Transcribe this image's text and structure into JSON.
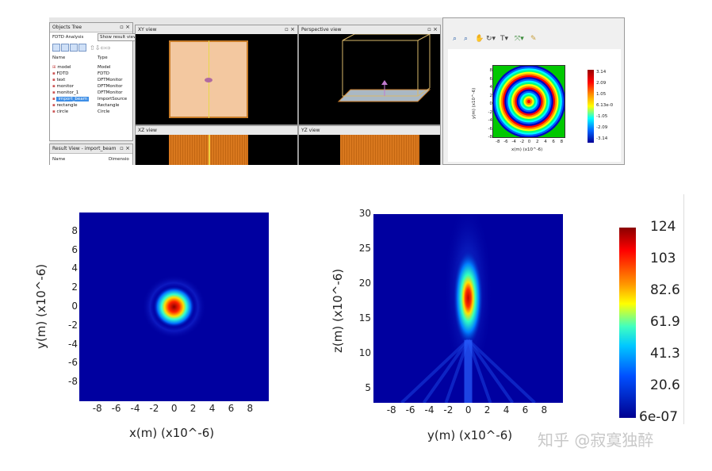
{
  "app": {
    "objects_tree": {
      "title": "Objects Tree",
      "analysis_label": "FDTD Analysis",
      "show_result_button": "Show result view",
      "columns": [
        "Name",
        "Type"
      ],
      "rows": [
        {
          "name": "model",
          "type": "Model"
        },
        {
          "name": "FDTD",
          "type": "FDTD"
        },
        {
          "name": "text",
          "type": "DFTMonitor"
        },
        {
          "name": "monitor",
          "type": "DFTMonitor"
        },
        {
          "name": "monitor_1",
          "type": "DFTMonitor"
        },
        {
          "name": "import_beam",
          "type": "ImportSource"
        },
        {
          "name": "rectangle",
          "type": "Rectangle"
        },
        {
          "name": "circle",
          "type": "Circle"
        }
      ]
    },
    "result_view": {
      "title": "Result View - import_beam",
      "col_name": "Name",
      "col_dims": "Dimensio"
    },
    "views": {
      "xy": "XY view",
      "perspective": "Perspective view",
      "xz": "XZ view",
      "yz": "YZ view"
    },
    "visualizer": {
      "ylabel": "y(m) (x10^-6)",
      "xlabel": "x(m) (x10^-6)",
      "colorbar_ticks": [
        "3.14",
        "2.09",
        "1.05",
        "6.13e-0",
        "-1.05",
        "-2.09",
        "-3.14"
      ],
      "x_ticks": [
        "-8",
        "-6",
        "-4",
        "-2",
        "0",
        "2",
        "4",
        "6",
        "8"
      ],
      "y_ticks": [
        "8",
        "6",
        "4",
        "2",
        "0",
        "-2",
        "-4",
        "-6",
        "-8"
      ]
    }
  },
  "chart_data": [
    {
      "type": "heatmap",
      "title": "",
      "xlabel": "x(m) (x10^-6)",
      "ylabel": "y(m) (x10^-6)",
      "xlim": [
        -10,
        10
      ],
      "ylim": [
        -10,
        10
      ],
      "x_ticks": [
        -8,
        -6,
        -4,
        -2,
        0,
        2,
        4,
        6,
        8
      ],
      "y_ticks": [
        8,
        6,
        4,
        2,
        0,
        -2,
        -4,
        -6,
        -8
      ],
      "x_tick_labels": [
        "-8",
        "-6",
        "-4",
        "-2",
        "0",
        "2",
        "4",
        "6",
        "8"
      ],
      "y_tick_labels": [
        "8",
        "6",
        "4",
        "2",
        "0",
        "-2",
        "-4",
        "-6",
        "-8"
      ],
      "description_data": {
        "spot_center": [
          0,
          0
        ],
        "spot_radius": 1.0,
        "ring_radius": 2.5
      }
    },
    {
      "type": "heatmap",
      "title": "",
      "xlabel": "y(m) (x10^-6)",
      "ylabel": "z(m) (x10^-6)",
      "xlim": [
        -10,
        10
      ],
      "ylim": [
        3,
        30
      ],
      "x_ticks": [
        -8,
        -6,
        -4,
        -2,
        0,
        2,
        4,
        6,
        8
      ],
      "y_ticks": [
        30,
        25,
        20,
        15,
        10,
        5
      ],
      "x_tick_labels": [
        "-8",
        "-6",
        "-4",
        "-2",
        "0",
        "2",
        "4",
        "6",
        "8"
      ],
      "y_tick_labels": [
        "30",
        "25",
        "20",
        "15",
        "10",
        "5"
      ],
      "description_data": {
        "focus_z": 18,
        "focus_halfwidth": 1.0
      },
      "colorbar": {
        "min": 6e-07,
        "max": 124,
        "tick_labels": [
          "124",
          "103",
          "82.6",
          "61.9",
          "41.3",
          "20.6",
          "6e-07"
        ]
      }
    }
  ],
  "watermark": "知乎 @寂寞独醉"
}
